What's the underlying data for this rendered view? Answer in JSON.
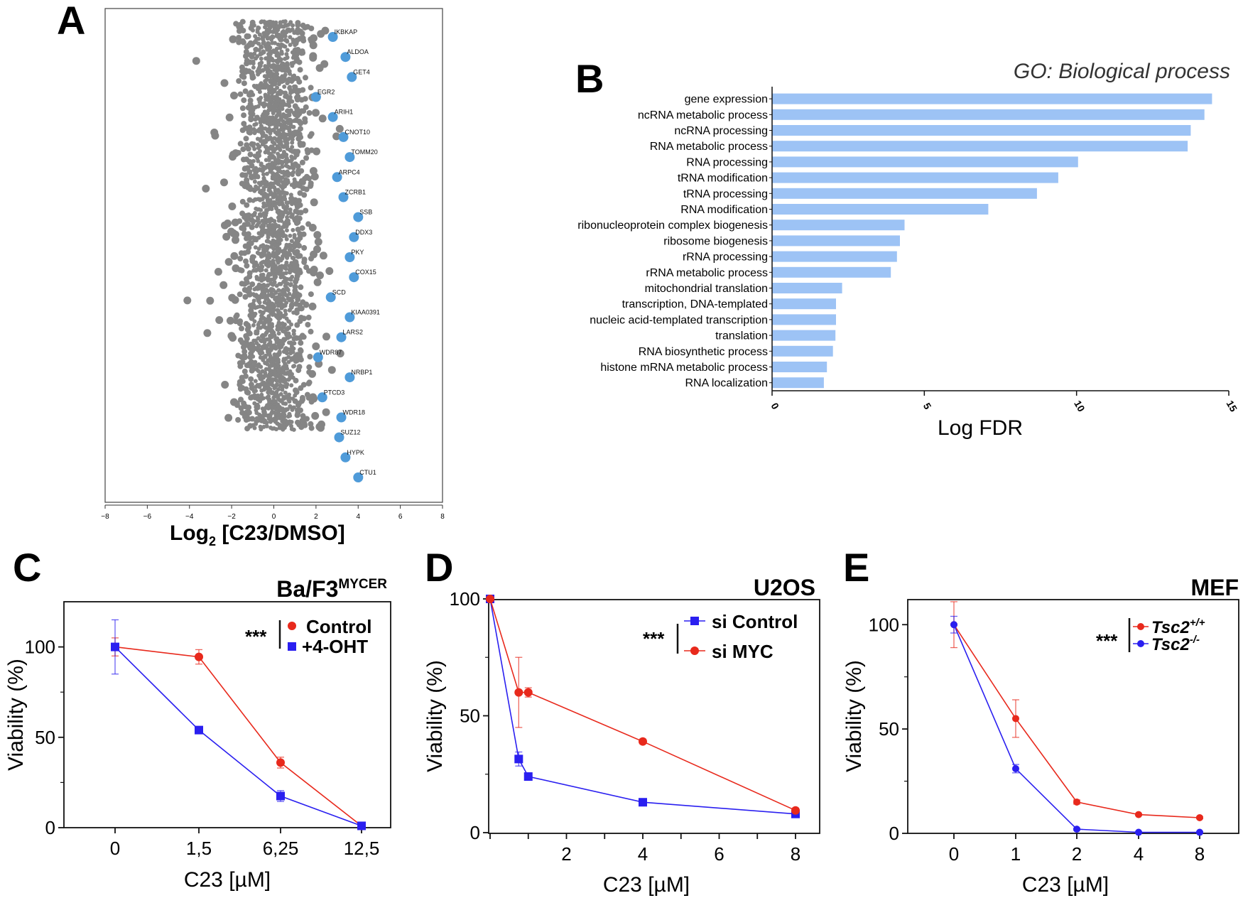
{
  "panels": {
    "A": {
      "letter": "A",
      "xlabel_main": "Log",
      "xlabel_sub": "2",
      "xlabel_rest": " [C23/DMSO]"
    },
    "B": {
      "letter": "B",
      "title": "GO: Biological process",
      "xlabel": "Log FDR"
    },
    "C": {
      "letter": "C",
      "title_main": "Ba/F3",
      "title_sup": "MYCER",
      "ylabel": "Viability (%)",
      "xlabel": "C23 [µM]",
      "stars": "***"
    },
    "D": {
      "letter": "D",
      "title": "U2OS",
      "ylabel": "Viability (%)",
      "xlabel": "C23 [µM]",
      "stars": "***"
    },
    "E": {
      "letter": "E",
      "title": "MEF",
      "ylabel": "Viability (%)",
      "xlabel": "C23 [µM]",
      "stars": "***"
    }
  },
  "chart_data": [
    {
      "panel": "A",
      "type": "scatter",
      "xlabel": "Log2 [C23/DMSO]",
      "xlim": [
        -8,
        8
      ],
      "xticks": [
        -8,
        -6,
        -4,
        -2,
        0,
        2,
        4,
        6,
        8
      ],
      "colors": {
        "points": "#858585",
        "highlight": "#4f9bd9"
      },
      "highlighted_genes": [
        {
          "name": "IKBKAP",
          "x": 2.8,
          "rank": 1
        },
        {
          "name": "ALDOA",
          "x": 3.4,
          "rank": 2
        },
        {
          "name": "GET4",
          "x": 3.7,
          "rank": 3
        },
        {
          "name": "EGR2",
          "x": 2.0,
          "rank": 4
        },
        {
          "name": "ARIH1",
          "x": 2.8,
          "rank": 5
        },
        {
          "name": "CNOT10",
          "x": 3.3,
          "rank": 6
        },
        {
          "name": "TOMM20",
          "x": 3.6,
          "rank": 7
        },
        {
          "name": "ARPC4",
          "x": 3.0,
          "rank": 8
        },
        {
          "name": "ZCRB1",
          "x": 3.3,
          "rank": 9
        },
        {
          "name": "SSB",
          "x": 4.0,
          "rank": 10
        },
        {
          "name": "DDX3",
          "x": 3.8,
          "rank": 11
        },
        {
          "name": "PKY",
          "x": 3.6,
          "rank": 12
        },
        {
          "name": "COX15",
          "x": 3.8,
          "rank": 13
        },
        {
          "name": "SCD",
          "x": 2.7,
          "rank": 14
        },
        {
          "name": "KIAA0391",
          "x": 3.6,
          "rank": 15
        },
        {
          "name": "LARS2",
          "x": 3.2,
          "rank": 16
        },
        {
          "name": "WDR87",
          "x": 2.1,
          "rank": 17
        },
        {
          "name": "NRBP1",
          "x": 3.6,
          "rank": 18
        },
        {
          "name": "PTCD3",
          "x": 2.3,
          "rank": 19
        },
        {
          "name": "WDR18",
          "x": 3.2,
          "rank": 20
        },
        {
          "name": "SUZ12",
          "x": 3.1,
          "rank": 21
        },
        {
          "name": "HYPK",
          "x": 3.4,
          "rank": 22
        },
        {
          "name": "CTU1",
          "x": 4.0,
          "rank": 23
        }
      ]
    },
    {
      "panel": "B",
      "type": "bar",
      "orientation": "horizontal",
      "title": "GO: Biological process",
      "xlabel": "Log FDR",
      "xlim": [
        0,
        15
      ],
      "xticks": [
        0,
        5,
        10,
        15
      ],
      "color": "#9dc3f5",
      "categories": [
        "gene expression",
        "ncRNA metabolic process",
        "ncRNA processing",
        "RNA metabolic process",
        "RNA processing",
        "tRNA modification",
        "tRNA processing",
        "RNA modification",
        "ribonucleoprotein complex biogenesis",
        "ribosome biogenesis",
        "rRNA processing",
        "rRNA metabolic process",
        "mitochondrial translation",
        "transcription, DNA-templated",
        "nucleic acid-templated transcription",
        "translation",
        "RNA biosynthetic process",
        "histone mRNA metabolic process",
        "RNA localization"
      ],
      "values": [
        14.45,
        14.2,
        13.75,
        13.65,
        10.05,
        9.4,
        8.7,
        7.1,
        4.35,
        4.2,
        4.1,
        3.9,
        2.3,
        2.1,
        2.1,
        2.08,
        2.0,
        1.8,
        1.7
      ]
    },
    {
      "panel": "C",
      "type": "line",
      "title": "Ba/F3MYCER",
      "xlabel": "C23 [µM]",
      "ylabel": "Viability (%)",
      "categories": [
        "0",
        "1,5",
        "6,25",
        "12,5"
      ],
      "ylim": [
        0,
        125
      ],
      "yticks": [
        0,
        50,
        100
      ],
      "series": [
        {
          "name": "Control",
          "color": "#e8291c",
          "marker": "circle",
          "values": [
            100,
            94.5,
            36,
            1
          ],
          "errors": [
            5,
            4,
            3,
            1
          ]
        },
        {
          "name": "+4-OHT",
          "color": "#2a1ff0",
          "marker": "square",
          "values": [
            100,
            54,
            17.5,
            1
          ],
          "errors": [
            15,
            1.5,
            3,
            1
          ]
        }
      ]
    },
    {
      "panel": "D",
      "type": "line",
      "title": "U2OS",
      "xlabel": "C23 [µM]",
      "ylabel": "Viability (%)",
      "xlim": [
        0,
        8.3
      ],
      "xticks": [
        2,
        4,
        6,
        8
      ],
      "ylim": [
        0,
        100
      ],
      "yticks": [
        0,
        50,
        100
      ],
      "series": [
        {
          "name": "si Control",
          "color": "#2a1ff0",
          "marker": "square",
          "x": [
            0,
            0.75,
            1,
            4,
            8
          ],
          "values": [
            100,
            31.5,
            24,
            13,
            8
          ],
          "errors": [
            0,
            3,
            1,
            1,
            1.5
          ]
        },
        {
          "name": "si MYC",
          "color": "#e8291c",
          "marker": "circle",
          "x": [
            0,
            0.75,
            1,
            4,
            8
          ],
          "values": [
            100,
            60,
            60,
            39,
            9.5
          ],
          "errors": [
            0,
            15,
            2,
            1,
            1
          ]
        }
      ]
    },
    {
      "panel": "E",
      "type": "line",
      "title": "MEF",
      "xlabel": "C23 [µM]",
      "ylabel": "Viability (%)",
      "categories": [
        "0",
        "1",
        "2",
        "4",
        "8"
      ],
      "ylim": [
        0,
        112
      ],
      "yticks": [
        0,
        50,
        100
      ],
      "series": [
        {
          "name": "Tsc2",
          "sup": "+/+",
          "color": "#e8291c",
          "marker": "circle",
          "values": [
            100,
            55,
            15,
            9,
            7.5
          ],
          "errors": [
            11,
            9,
            1,
            0.5,
            0.5
          ]
        },
        {
          "name": "Tsc2",
          "sup": "-/-",
          "color": "#2a1ff0",
          "marker": "circle",
          "values": [
            100,
            31,
            2,
            0.5,
            0.5
          ],
          "errors": [
            4,
            2,
            0.5,
            0.3,
            0.3
          ]
        }
      ]
    }
  ]
}
